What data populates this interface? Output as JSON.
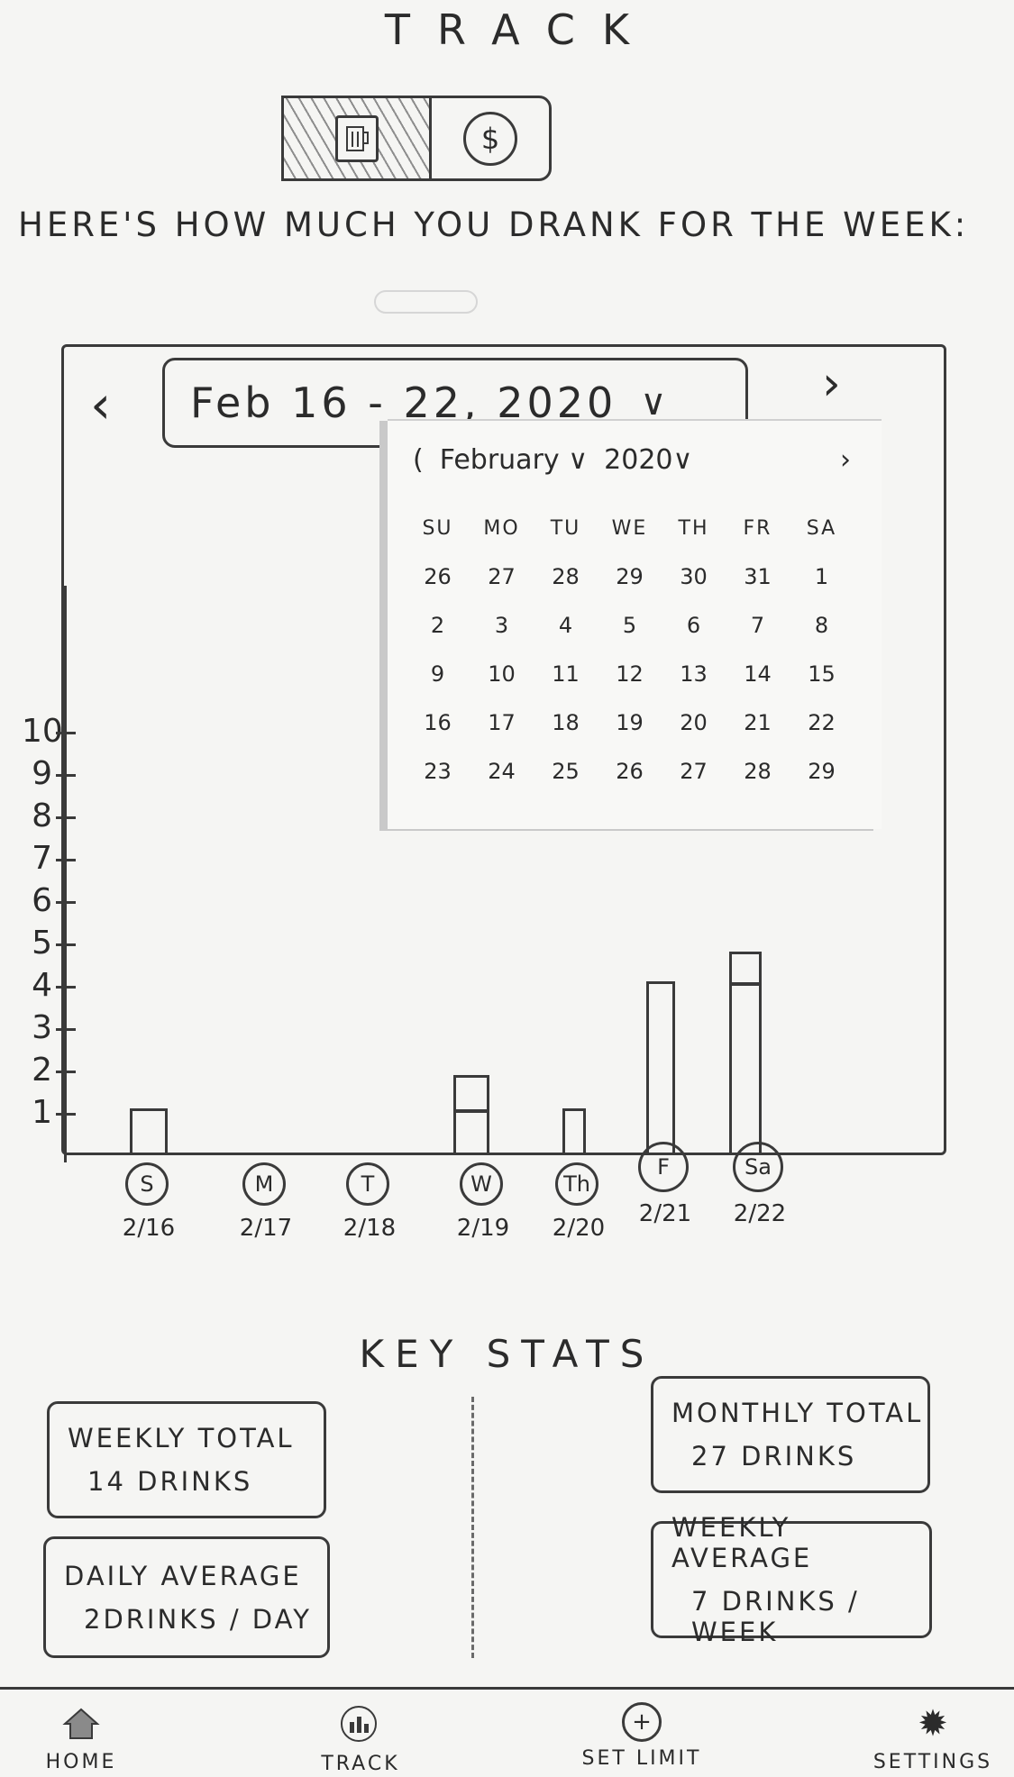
{
  "header": {
    "title": "TRACK"
  },
  "toggle": {
    "drinks_icon": "beer-mug-icon",
    "money_icon": "dollar-icon",
    "money_glyph": "$"
  },
  "subtitle": "HERE'S HOW MUCH YOU DRANK FOR THE WEEK:",
  "date_picker": {
    "prev_glyph": "‹",
    "next_glyph": "›",
    "range": "Feb 16 - 22, 2020",
    "dropdown_glyph": "∨"
  },
  "calendar": {
    "prev_glyph": "(",
    "month": "February ∨",
    "year": "2020∨",
    "next_glyph": "›",
    "weekdays": [
      "SU",
      "MO",
      "TU",
      "WE",
      "TH",
      "FR",
      "SA"
    ],
    "weeks": [
      [
        "26",
        "27",
        "28",
        "29",
        "30",
        "31",
        "1"
      ],
      [
        "2",
        "3",
        "4",
        "5",
        "6",
        "7",
        "8"
      ],
      [
        "9",
        "10",
        "11",
        "12",
        "13",
        "14",
        "15"
      ],
      [
        "16",
        "17",
        "18",
        "19",
        "20",
        "21",
        "22"
      ],
      [
        "23",
        "24",
        "25",
        "26",
        "27",
        "28",
        "29"
      ]
    ]
  },
  "chart_data": {
    "type": "bar",
    "categories": [
      "S",
      "M",
      "T",
      "W",
      "Th",
      "F",
      "Sa"
    ],
    "dates": [
      "2/16",
      "2/17",
      "2/18",
      "2/19",
      "2/20",
      "2/21",
      "2/22"
    ],
    "values": [
      1.1,
      0,
      0,
      1.9,
      1.1,
      4.1,
      4.8
    ],
    "segment_marks": [
      null,
      null,
      null,
      1,
      null,
      null,
      4
    ],
    "yticks": [
      "1",
      "2",
      "3",
      "4",
      "5",
      "6",
      "7",
      "8",
      "9",
      "10"
    ],
    "ylim": [
      0,
      10.5
    ],
    "grid": false
  },
  "key_stats": {
    "title": "KEY STATS",
    "weekly_total": {
      "label": "WEEKLY TOTAL",
      "value": "14 DRINKS"
    },
    "daily_average": {
      "label": "DAILY AVERAGE",
      "value": "2DRINKS / DAY"
    },
    "monthly_total": {
      "label": "MONTHLY TOTAL",
      "value": "27 DRINKS"
    },
    "weekly_average": {
      "label": "WEEKLY AVERAGE",
      "value": "7 DRINKS / WEEK"
    }
  },
  "nav": {
    "items": [
      {
        "label": "HOME",
        "icon": "home-icon"
      },
      {
        "label": "TRACK",
        "icon": "track-icon"
      },
      {
        "label": "SET LIMIT",
        "icon": "plus-icon",
        "glyph": "+"
      },
      {
        "label": "SETTINGS",
        "icon": "gear-icon",
        "glyph": "✹"
      }
    ]
  }
}
